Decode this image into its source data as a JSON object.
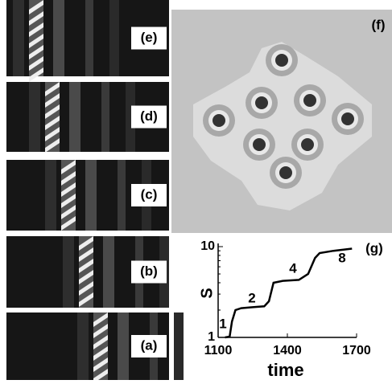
{
  "panels": [
    "(e)",
    "(d)",
    "(c)",
    "(b)",
    "(a)",
    "(f)"
  ],
  "chart_data": {
    "type": "line",
    "label": "(g)",
    "x_label": "time",
    "y_label": "S",
    "x": [
      1130,
      1150,
      1160,
      1175,
      1200,
      1250,
      1300,
      1320,
      1340,
      1380,
      1450,
      1490,
      1520,
      1540,
      1600,
      1680
    ],
    "values": [
      1,
      1.02,
      1.5,
      2.0,
      2.1,
      2.15,
      2.2,
      2.5,
      4.0,
      4.2,
      4.3,
      5,
      7.5,
      8.5,
      9,
      9.5
    ],
    "color": "#000000",
    "xlim": [
      1100,
      1700
    ],
    "xticks": [
      1100,
      1400,
      1700
    ],
    "ylim": [
      1,
      10
    ],
    "yticks": [
      1,
      10
    ],
    "log_y": true,
    "annotations": [
      "1",
      "2",
      "4",
      "8"
    ]
  }
}
